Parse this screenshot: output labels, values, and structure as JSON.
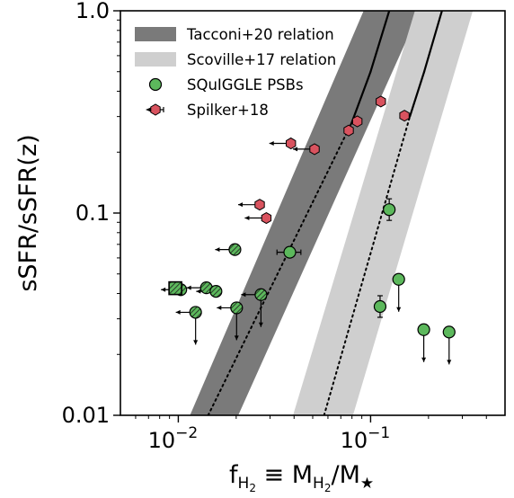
{
  "chart_data": {
    "type": "scatter",
    "xscale": "log",
    "yscale": "log",
    "xlim": [
      0.005,
      0.5
    ],
    "ylim": [
      0.01,
      1.0
    ],
    "grid": false,
    "legend_position": "top-left",
    "xlabel": {
      "main": "f",
      "sub": "H",
      "subsub": "2",
      "rest": " ≡ M",
      "sub2": "H",
      "subsub2": "2",
      "rest2": "/M",
      "sub3": "★"
    },
    "ylabel": "sSFR/sSFR(z)",
    "xticks": [
      {
        "value": 0.01,
        "base": "10",
        "exp": "−2"
      },
      {
        "value": 0.1,
        "base": "10",
        "exp": "−1"
      }
    ],
    "yticks": [
      {
        "value": 0.01,
        "label": "0.01"
      },
      {
        "value": 0.1,
        "label": "0.1"
      },
      {
        "value": 1.0,
        "label": "1.0"
      }
    ],
    "colors": {
      "tacconi_band": "#7a7a7a",
      "scoville_band": "#cfcfcf",
      "squiggle": "#5cb85c",
      "spilker": "#d9535f"
    },
    "relations": [
      {
        "name": "Tacconi+20 relation",
        "color": "#7a7a7a",
        "center": [
          [
            0.0143,
            0.01
          ],
          [
            0.0798,
            0.28
          ],
          [
            0.1,
            0.5
          ],
          [
            0.125,
            1.0
          ]
        ],
        "solid_above": 0.28,
        "band": [
          [
            0.0115,
            0.01
          ],
          [
            0.0205,
            0.01
          ],
          [
            0.18,
            1.0
          ],
          [
            0.092,
            1.0
          ]
        ]
      },
      {
        "name": "Scoville+17 relation",
        "color": "#cfcfcf",
        "center": [
          [
            0.0573,
            0.01
          ],
          [
            0.16,
            0.3
          ],
          [
            0.19,
            0.5
          ],
          [
            0.235,
            1.0
          ]
        ],
        "solid_above": 0.3,
        "band": [
          [
            0.0395,
            0.01
          ],
          [
            0.081,
            0.01
          ],
          [
            0.34,
            1.0
          ],
          [
            0.17,
            1.0
          ]
        ]
      }
    ],
    "series": [
      {
        "name": "SQuIGGLE PSBs",
        "marker": "circle",
        "points": [
          {
            "x": 0.038,
            "y": 0.064,
            "xerr": 0.0054,
            "upper_x": false,
            "upper_y": false
          },
          {
            "x": 0.0197,
            "y": 0.066,
            "xerr": 0.0,
            "upper_x": true,
            "upper_y": false,
            "hatched": true
          },
          {
            "x": 0.0103,
            "y": 0.0418,
            "xerr": 0.0,
            "upper_x": true,
            "upper_y": false,
            "hatched": true
          },
          {
            "x": 0.014,
            "y": 0.0427,
            "xerr": 0.0,
            "upper_x": true,
            "upper_y": false,
            "hatched": true
          },
          {
            "x": 0.0157,
            "y": 0.041,
            "xerr": 0.0,
            "upper_x": true,
            "upper_y": false,
            "hatched": true
          },
          {
            "x": 0.0123,
            "y": 0.0323,
            "xerr": 0.0,
            "upper_x": true,
            "upper_y": true,
            "hatched": true
          },
          {
            "x": 0.0201,
            "y": 0.034,
            "xerr": 0.0,
            "upper_x": true,
            "upper_y": true,
            "hatched": true
          },
          {
            "x": 0.0269,
            "y": 0.0395,
            "xerr": 0.0,
            "upper_x": true,
            "upper_y": true,
            "hatched": true
          },
          {
            "x": 0.125,
            "y": 0.104,
            "xerr": 0.0,
            "upper_x": false,
            "upper_y": false
          },
          {
            "x": 0.14,
            "y": 0.047,
            "xerr": 0.008,
            "upper_x": false,
            "upper_y": true
          },
          {
            "x": 0.112,
            "y": 0.0345,
            "xerr": 0.0,
            "upper_x": false,
            "upper_y": false
          },
          {
            "x": 0.189,
            "y": 0.0265,
            "xerr": 0.0,
            "upper_x": false,
            "upper_y": true
          },
          {
            "x": 0.256,
            "y": 0.0258,
            "xerr": 0.0,
            "upper_x": false,
            "upper_y": true
          }
        ]
      },
      {
        "name": "Spilker+18",
        "marker": "hexagon",
        "points": [
          {
            "x": 0.0385,
            "y": 0.221,
            "upper_x": true
          },
          {
            "x": 0.0511,
            "y": 0.207,
            "upper_x": true
          },
          {
            "x": 0.0265,
            "y": 0.11,
            "upper_x": true
          },
          {
            "x": 0.0287,
            "y": 0.0945,
            "upper_x": true
          },
          {
            "x": 0.0769,
            "y": 0.256,
            "upper_x": false
          },
          {
            "x": 0.0853,
            "y": 0.284,
            "upper_x": false
          },
          {
            "x": 0.113,
            "y": 0.356,
            "upper_x": false
          },
          {
            "x": 0.15,
            "y": 0.303,
            "upper_x": false
          }
        ]
      }
    ],
    "special_marker": {
      "x": 0.00965,
      "y": 0.0425,
      "shape": "square",
      "hatched": true
    }
  }
}
